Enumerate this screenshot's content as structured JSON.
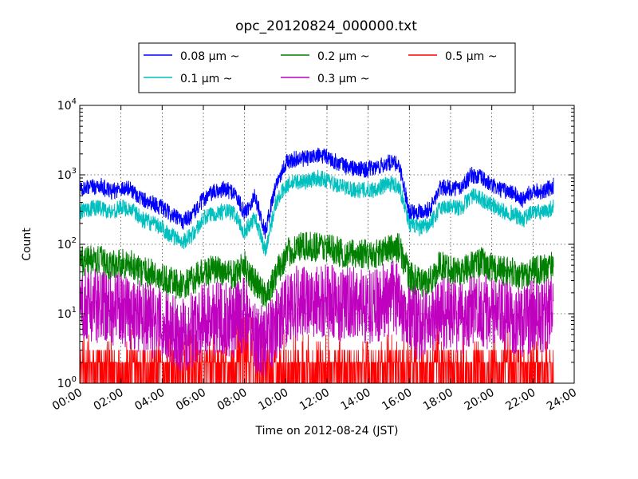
{
  "chart_data": {
    "type": "line",
    "title": "opc_20120824_000000.txt",
    "xlabel": "Time on 2012-08-24 (JST)",
    "ylabel": "Count",
    "y_scale": "log",
    "ylim": [
      1,
      10000
    ],
    "xlim": [
      "00:00",
      "24:00"
    ],
    "x_ticks": [
      "00:00",
      "02:00",
      "04:00",
      "06:00",
      "08:00",
      "10:00",
      "12:00",
      "14:00",
      "16:00",
      "18:00",
      "20:00",
      "22:00",
      "24:00"
    ],
    "y_ticks": [
      {
        "base": "10",
        "exp": "0",
        "value": 1
      },
      {
        "base": "10",
        "exp": "1",
        "value": 10
      },
      {
        "base": "10",
        "exp": "2",
        "value": 100
      },
      {
        "base": "10",
        "exp": "3",
        "value": 1000
      },
      {
        "base": "10",
        "exp": "4",
        "value": 10000
      }
    ],
    "grid": true,
    "legend_position": "top-center",
    "series": [
      {
        "name": "0.08 μm ~",
        "color": "#0000ff",
        "x": [
          0,
          0.5,
          1,
          1.5,
          2,
          2.5,
          3,
          3.5,
          4,
          4.5,
          5,
          5.5,
          6,
          6.5,
          7,
          7.5,
          8,
          8.5,
          9,
          9.5,
          10,
          10.5,
          11,
          11.5,
          12,
          12.5,
          13,
          13.5,
          14,
          14.5,
          15,
          15.5,
          16,
          16.5,
          17,
          17.5,
          18,
          18.5,
          19,
          19.5,
          20,
          20.5,
          21,
          21.5,
          22,
          22.5,
          23
        ],
        "y": [
          600,
          650,
          700,
          560,
          650,
          620,
          450,
          400,
          330,
          260,
          210,
          270,
          450,
          560,
          620,
          560,
          280,
          500,
          150,
          700,
          1500,
          1700,
          1700,
          1900,
          1800,
          1500,
          1300,
          1200,
          1200,
          1300,
          1500,
          1400,
          300,
          300,
          320,
          650,
          650,
          650,
          1000,
          900,
          700,
          600,
          560,
          430,
          620,
          560,
          700
        ],
        "noise": 0.12
      },
      {
        "name": "0.1 μm ~",
        "color": "#00bfbf",
        "x": [
          0,
          0.5,
          1,
          1.5,
          2,
          2.5,
          3,
          3.5,
          4,
          4.5,
          5,
          5.5,
          6,
          6.5,
          7,
          7.5,
          8,
          8.5,
          9,
          9.5,
          10,
          10.5,
          11,
          11.5,
          12,
          12.5,
          13,
          13.5,
          14,
          14.5,
          15,
          15.5,
          16,
          16.5,
          17,
          17.5,
          18,
          18.5,
          19,
          19.5,
          20,
          20.5,
          21,
          21.5,
          22,
          22.5,
          23
        ],
        "y": [
          300,
          330,
          340,
          290,
          340,
          320,
          230,
          200,
          170,
          130,
          110,
          140,
          230,
          280,
          300,
          280,
          150,
          250,
          80,
          380,
          700,
          800,
          800,
          900,
          850,
          700,
          650,
          600,
          600,
          650,
          750,
          700,
          200,
          170,
          190,
          340,
          350,
          330,
          500,
          450,
          370,
          300,
          280,
          220,
          300,
          280,
          350
        ],
        "noise": 0.12
      },
      {
        "name": "0.2 μm ~",
        "color": "#008000",
        "x": [
          0,
          0.5,
          1,
          1.5,
          2,
          2.5,
          3,
          3.5,
          4,
          4.5,
          5,
          5.5,
          6,
          6.5,
          7,
          7.5,
          8,
          8.5,
          9,
          9.5,
          10,
          10.5,
          11,
          11.5,
          12,
          12.5,
          13,
          13.5,
          14,
          14.5,
          15,
          15.5,
          16,
          16.5,
          17,
          17.5,
          18,
          18.5,
          19,
          19.5,
          20,
          20.5,
          21,
          21.5,
          22,
          22.5,
          23
        ],
        "y": [
          55,
          60,
          58,
          50,
          55,
          50,
          40,
          38,
          32,
          28,
          25,
          30,
          40,
          42,
          40,
          35,
          50,
          28,
          18,
          35,
          70,
          90,
          90,
          95,
          90,
          80,
          70,
          75,
          70,
          75,
          85,
          90,
          35,
          28,
          30,
          50,
          45,
          40,
          50,
          55,
          45,
          42,
          40,
          33,
          45,
          42,
          55
        ],
        "noise": 0.22
      },
      {
        "name": "0.3 μm ~",
        "color": "#bf00bf",
        "x": [
          0,
          0.5,
          1,
          1.5,
          2,
          2.5,
          3,
          3.5,
          4,
          4.5,
          5,
          5.5,
          6,
          6.5,
          7,
          7.5,
          8,
          8.5,
          9,
          9.5,
          10,
          10.5,
          11,
          11.5,
          12,
          12.5,
          13,
          13.5,
          14,
          14.5,
          15,
          15.5,
          16,
          16.5,
          17,
          17.5,
          18,
          18.5,
          19,
          19.5,
          20,
          20.5,
          21,
          21.5,
          22,
          22.5,
          23
        ],
        "y": [
          13,
          14,
          13,
          12,
          12,
          11,
          9,
          8,
          7,
          6,
          5,
          6,
          8,
          9,
          9,
          8,
          10,
          5,
          4,
          7,
          12,
          14,
          15,
          16,
          15,
          14,
          13,
          14,
          13,
          14,
          16,
          17,
          9,
          7,
          8,
          11,
          10,
          9,
          11,
          12,
          10,
          9,
          9,
          8,
          10,
          9,
          12
        ],
        "noise": 0.55
      },
      {
        "name": "0.5 μm ~",
        "color": "#ff0000",
        "x": [
          0,
          1,
          2,
          3,
          4,
          5,
          6,
          7,
          8,
          9,
          10,
          11,
          12,
          13,
          14,
          15,
          16,
          17,
          18,
          19,
          20,
          21,
          22,
          23
        ],
        "y": [
          2,
          2,
          2,
          2,
          1.8,
          1.6,
          1.8,
          2,
          2.5,
          1.5,
          2,
          2,
          2.2,
          2,
          2,
          2.2,
          2,
          1.8,
          2,
          2,
          1.8,
          1.7,
          1.6,
          1.8
        ],
        "noise": 0.45
      }
    ]
  }
}
